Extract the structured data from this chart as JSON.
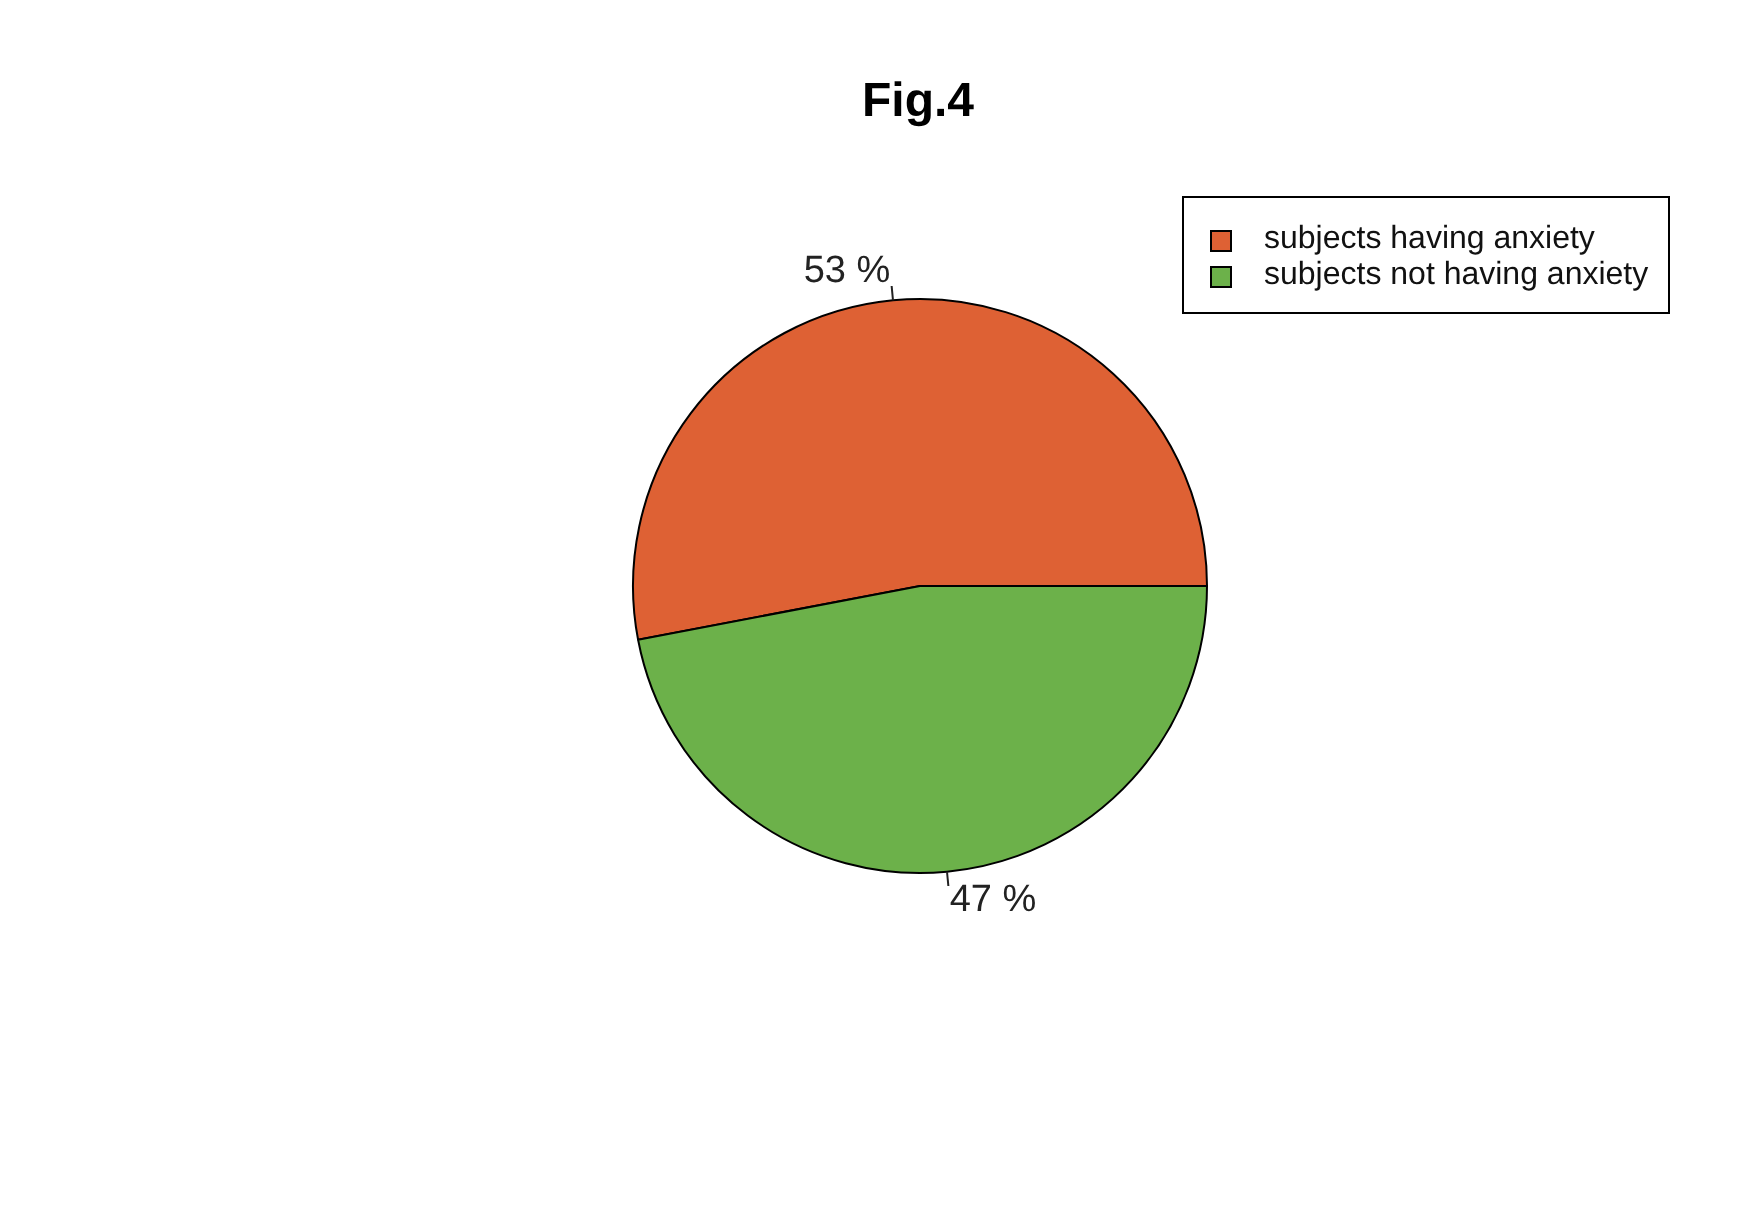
{
  "chart_data": {
    "type": "pie",
    "title": "Fig.4",
    "categories": [
      "subjects having anxiety",
      "subjects not having anxiety"
    ],
    "values": [
      53,
      47
    ],
    "colors": [
      "#de6134",
      "#6cb14a"
    ],
    "value_labels": [
      "53 %",
      "47 %"
    ],
    "legend": "top right"
  }
}
